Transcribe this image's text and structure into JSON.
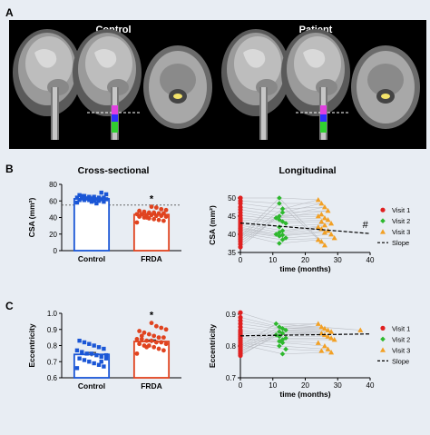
{
  "panels": {
    "a": {
      "letter": "A",
      "control_label": "Control",
      "patient_label": "Patient"
    },
    "b": {
      "letter": "B",
      "left_title": "Cross-sectional",
      "right_title": "Longitudinal"
    },
    "c": {
      "letter": "C"
    }
  },
  "colors": {
    "background": "#e8edf3",
    "panel_a_bg": "#000000",
    "control": "#1a56d6",
    "frda": "#e0431f",
    "visit1": "#e02020",
    "visit2": "#2db82d",
    "visit3": "#f2a024",
    "significance": "#000000"
  },
  "chart_data": [
    {
      "id": "b_cross",
      "type": "bar",
      "categories": [
        "Control",
        "FRDA"
      ],
      "values": [
        62.5,
        43.5
      ],
      "errors": [
        1.5,
        1.5
      ],
      "ylabel": "CSA (mm²)",
      "ylim": [
        0,
        80
      ],
      "yticks": [
        0,
        20,
        40,
        60,
        80
      ],
      "reference_line": 55,
      "annotation": "*",
      "points": [
        [
          58,
          59,
          60,
          60,
          61,
          61,
          61,
          62,
          62,
          62,
          63,
          63,
          63,
          64,
          64,
          64,
          65,
          65,
          66,
          67,
          68,
          70,
          57,
          59,
          63,
          66
        ],
        [
          34,
          36,
          37,
          38,
          39,
          40,
          41,
          41,
          42,
          42,
          43,
          43,
          44,
          44,
          45,
          45,
          46,
          46,
          47,
          48,
          49,
          50,
          52,
          53,
          40,
          44
        ]
      ]
    },
    {
      "id": "b_long",
      "type": "scatter",
      "xlabel": "time (months)",
      "ylabel": "CSA (mm²)",
      "xlim": [
        0,
        40
      ],
      "ylim": [
        35,
        50
      ],
      "xticks": [
        0,
        10,
        20,
        30,
        40
      ],
      "yticks": [
        35,
        40,
        45,
        50
      ],
      "series": [
        {
          "name": "Visit 1",
          "x": [
            0,
            0,
            0,
            0,
            0,
            0,
            0,
            0,
            0,
            0,
            0,
            0,
            0,
            0,
            0,
            0,
            0,
            0,
            0,
            0,
            0,
            0,
            0,
            0
          ],
          "y": [
            50,
            49.2,
            48.5,
            47.5,
            46.8,
            46,
            45.2,
            44.5,
            44,
            43.5,
            43,
            42.5,
            42,
            41.6,
            41.2,
            40.8,
            40.3,
            40,
            39.5,
            39,
            38.6,
            38,
            37.3,
            36.5
          ]
        },
        {
          "name": "Visit 2",
          "x": [
            12,
            12,
            13,
            13,
            12,
            11,
            12,
            13,
            14,
            12,
            13,
            12,
            11,
            13,
            12,
            14,
            13,
            12
          ],
          "y": [
            50,
            48.5,
            47,
            46,
            45,
            44.5,
            44,
            43.5,
            43,
            42,
            41,
            40.5,
            40,
            39.8,
            39.5,
            39,
            38.5,
            37.5
          ]
        },
        {
          "name": "Visit 3",
          "x": [
            24,
            25,
            26,
            27,
            25,
            24,
            26,
            27,
            25,
            28,
            26,
            24,
            25,
            27,
            26,
            28,
            29,
            24,
            25,
            26
          ],
          "y": [
            49.5,
            48.5,
            47.5,
            46.5,
            45.5,
            45,
            44.5,
            44,
            43.5,
            43,
            42.5,
            42,
            41.5,
            41,
            40.5,
            40,
            39,
            38.5,
            38,
            37
          ]
        }
      ],
      "slope_line": {
        "name": "Slope",
        "x": [
          0,
          40
        ],
        "y": [
          43.1,
          40.2
        ]
      },
      "annotation": "#"
    },
    {
      "id": "c_cross",
      "type": "bar",
      "categories": [
        "Control",
        "FRDA"
      ],
      "values": [
        0.745,
        0.825
      ],
      "errors": [
        0.012,
        0.01
      ],
      "ylabel": "Eccentricity",
      "ylim": [
        0.6,
        1.0
      ],
      "yticks": [
        0.6,
        0.7,
        0.8,
        0.9,
        1.0
      ],
      "annotation": "*",
      "points": [
        [
          0.66,
          0.67,
          0.68,
          0.69,
          0.7,
          0.71,
          0.72,
          0.72,
          0.73,
          0.74,
          0.75,
          0.75,
          0.76,
          0.77,
          0.78,
          0.79,
          0.8,
          0.81,
          0.82,
          0.83,
          0.74,
          0.7
        ],
        [
          0.75,
          0.77,
          0.78,
          0.79,
          0.8,
          0.8,
          0.81,
          0.81,
          0.82,
          0.82,
          0.83,
          0.83,
          0.84,
          0.84,
          0.85,
          0.85,
          0.86,
          0.87,
          0.88,
          0.89,
          0.9,
          0.91,
          0.92,
          0.94,
          0.79,
          0.86
        ]
      ]
    },
    {
      "id": "c_long",
      "type": "scatter",
      "xlabel": "time (months)",
      "ylabel": "Eccentricity",
      "xlim": [
        0,
        40
      ],
      "ylim": [
        0.7,
        0.9
      ],
      "xticks": [
        0,
        10,
        20,
        30,
        40
      ],
      "yticks": [
        0.7,
        0.8,
        0.9
      ],
      "series": [
        {
          "name": "Visit 1",
          "x": [
            0,
            0,
            0,
            0,
            0,
            0,
            0,
            0,
            0,
            0,
            0,
            0,
            0,
            0,
            0,
            0,
            0,
            0,
            0,
            0,
            0,
            0
          ],
          "y": [
            0.905,
            0.89,
            0.88,
            0.87,
            0.86,
            0.85,
            0.845,
            0.84,
            0.835,
            0.83,
            0.825,
            0.82,
            0.815,
            0.81,
            0.805,
            0.8,
            0.795,
            0.79,
            0.785,
            0.78,
            0.775,
            0.77
          ]
        },
        {
          "name": "Visit 2",
          "x": [
            11,
            12,
            13,
            14,
            12,
            13,
            11,
            12,
            14,
            13,
            12,
            13,
            12,
            14,
            13
          ],
          "y": [
            0.87,
            0.86,
            0.855,
            0.85,
            0.845,
            0.84,
            0.835,
            0.83,
            0.825,
            0.82,
            0.815,
            0.81,
            0.8,
            0.79,
            0.775
          ]
        },
        {
          "name": "Visit 3",
          "x": [
            24,
            25,
            26,
            27,
            28,
            25,
            26,
            27,
            28,
            29,
            24,
            26,
            27,
            25,
            28,
            37
          ],
          "y": [
            0.87,
            0.86,
            0.855,
            0.85,
            0.845,
            0.84,
            0.835,
            0.83,
            0.825,
            0.82,
            0.81,
            0.8,
            0.79,
            0.785,
            0.78,
            0.85
          ]
        }
      ],
      "slope_line": {
        "name": "Slope",
        "x": [
          0,
          40
        ],
        "y": [
          0.832,
          0.838
        ]
      }
    }
  ]
}
